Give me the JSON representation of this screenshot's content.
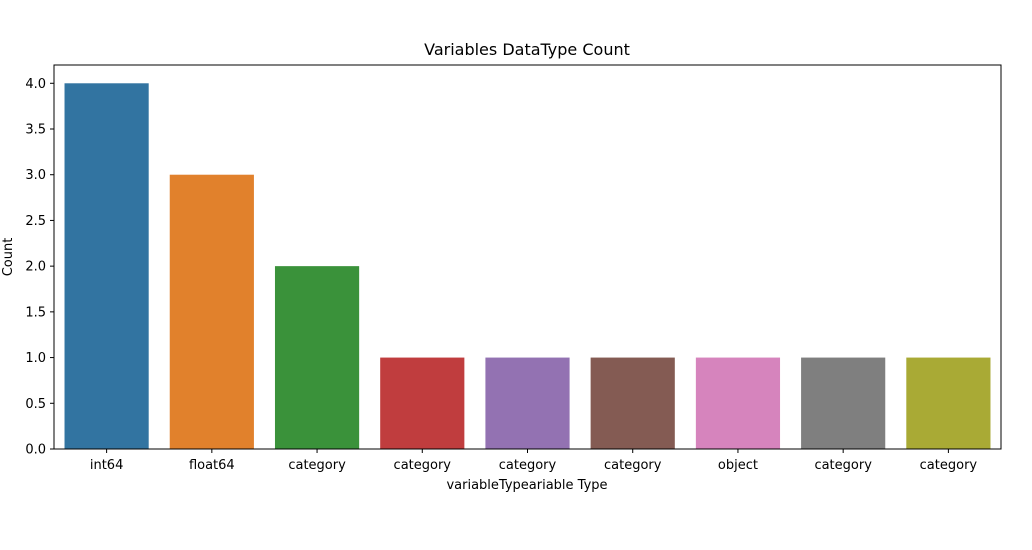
{
  "chart_data": {
    "type": "bar",
    "title": "Variables DataType Count",
    "xlabel": "variableTypeariable Type",
    "ylabel": "Count",
    "categories": [
      "int64",
      "float64",
      "category",
      "category",
      "category",
      "category",
      "object",
      "category",
      "category"
    ],
    "values": [
      4,
      3,
      2,
      1,
      1,
      1,
      1,
      1,
      1
    ],
    "ylim": [
      0,
      4.2
    ],
    "yticks": [
      0.0,
      0.5,
      1.0,
      1.5,
      2.0,
      2.5,
      3.0,
      3.5,
      4.0
    ],
    "ytick_labels": [
      "0.0",
      "0.5",
      "1.0",
      "1.5",
      "2.0",
      "2.5",
      "3.0",
      "3.5",
      "4.0"
    ],
    "colors": [
      "#3274a1",
      "#e1812c",
      "#3a923a",
      "#c03d3e",
      "#9372b2",
      "#845b53",
      "#d684bd",
      "#7f7f7f",
      "#a9aa35"
    ],
    "grid": false,
    "legend": "none"
  }
}
